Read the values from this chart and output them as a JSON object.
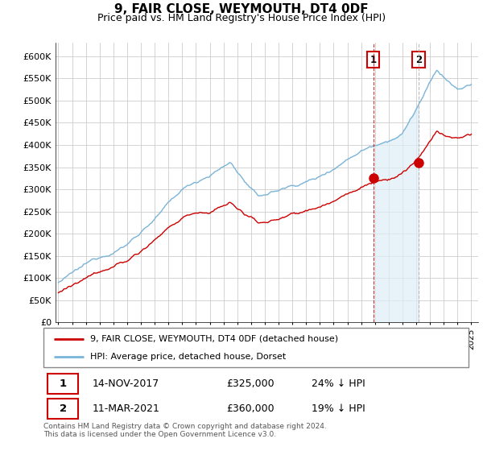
{
  "title": "9, FAIR CLOSE, WEYMOUTH, DT4 0DF",
  "subtitle": "Price paid vs. HM Land Registry's House Price Index (HPI)",
  "ytick_values": [
    0,
    50000,
    100000,
    150000,
    200000,
    250000,
    300000,
    350000,
    400000,
    450000,
    500000,
    550000,
    600000
  ],
  "xlim_start": 1994.8,
  "xlim_end": 2025.5,
  "ylim_min": 0,
  "ylim_max": 630000,
  "hpi_color": "#7ab4d8",
  "hpi_fill_color": "#ddeef7",
  "price_color": "#cc0000",
  "marker1_date": 2017.87,
  "marker1_price": 325000,
  "marker2_date": 2021.19,
  "marker2_price": 360000,
  "legend_property": "9, FAIR CLOSE, WEYMOUTH, DT4 0DF (detached house)",
  "legend_hpi": "HPI: Average price, detached house, Dorset",
  "footer": "Contains HM Land Registry data © Crown copyright and database right 2024.\nThis data is licensed under the Open Government Licence v3.0.",
  "table_row1": [
    "1",
    "14-NOV-2017",
    "£325,000",
    "24% ↓ HPI"
  ],
  "table_row2": [
    "2",
    "11-MAR-2021",
    "£360,000",
    "19% ↓ HPI"
  ],
  "background_color": "#ffffff",
  "grid_color": "#cccccc"
}
